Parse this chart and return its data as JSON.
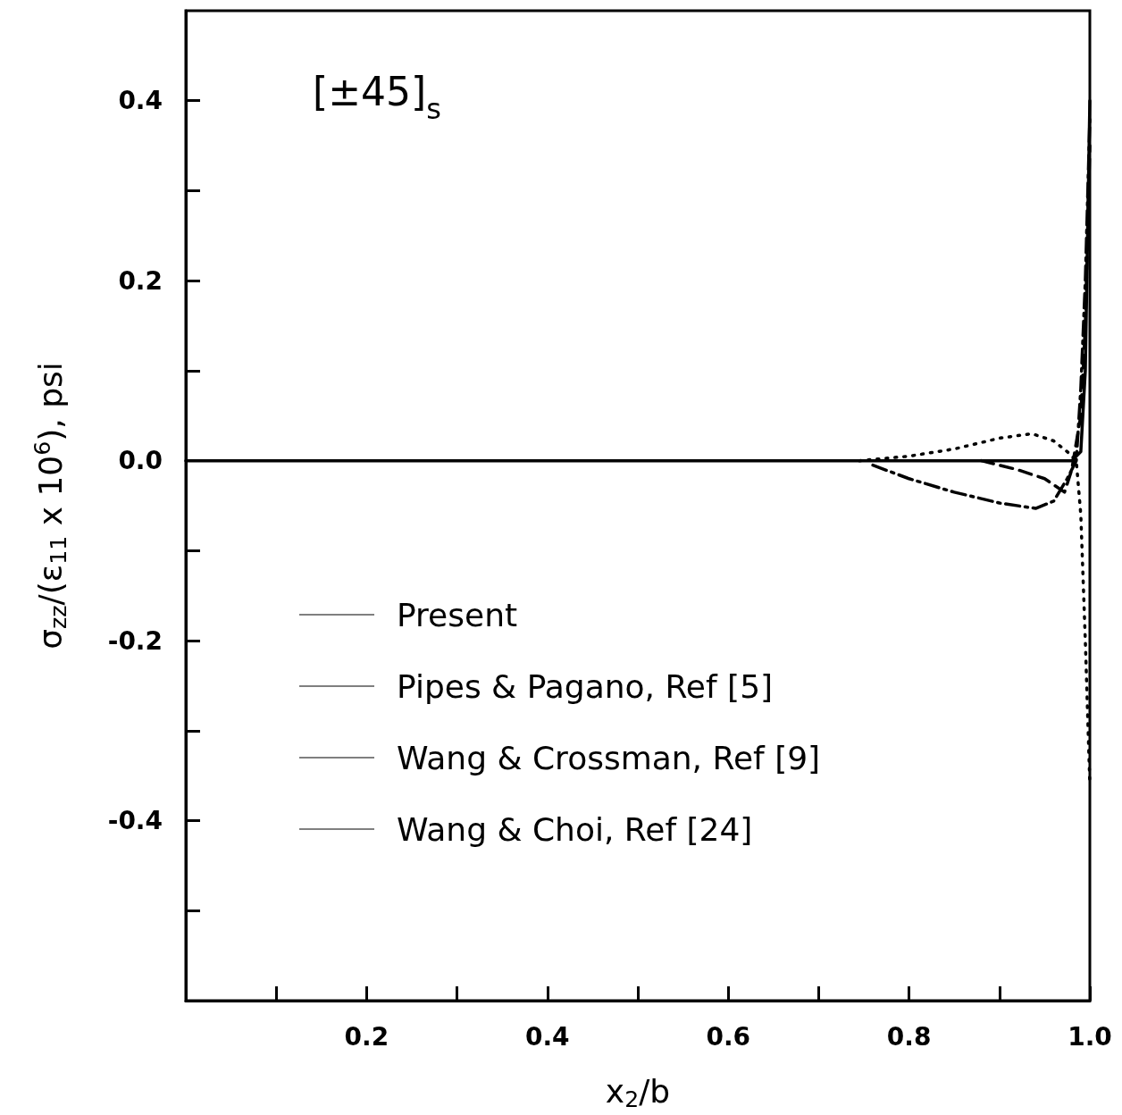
{
  "chart_data": {
    "type": "line",
    "xlabel": "x$_{2}$/b",
    "ylabel": "σ$_{zz}$/(ε$_{11}$ x 10$^{6}$), psi",
    "annotations": [
      "[±45]$_{s}$"
    ],
    "xlim": [
      0,
      1.0
    ],
    "ylim": [
      -0.6,
      0.5
    ],
    "xticks": [
      {
        "value": 0.1,
        "label": null
      },
      0.2,
      {
        "value": 0.3,
        "label": null
      },
      0.4,
      {
        "value": 0.5,
        "label": null
      },
      0.6,
      {
        "value": 0.7,
        "label": null
      },
      0.8,
      {
        "value": 0.9,
        "label": null
      },
      {
        "value": 1.0,
        "label": "1.0"
      }
    ],
    "yticks": [
      {
        "value": -0.5,
        "label": null
      },
      -0.4,
      {
        "value": -0.3,
        "label": null
      },
      -0.2,
      {
        "value": -0.1,
        "label": null
      },
      {
        "value": 0,
        "label": "0.0"
      },
      {
        "value": 0.1,
        "label": null
      },
      0.2,
      {
        "value": 0.3,
        "label": null
      },
      0.4
    ],
    "grid": false,
    "legend": "bottom left",
    "marker": "none",
    "series": [
      {
        "name": "Present",
        "color": "#000000",
        "line_style": "solid",
        "x": [
          0,
          0.5,
          0.98,
          0.99,
          0.995,
          1.0
        ],
        "values": [
          0,
          0,
          0,
          0.01,
          0.1,
          0.4
        ]
      },
      {
        "name": "Pipes & Pagano, Ref [5]",
        "color": "#000000",
        "line_style": "dashed",
        "x": [
          0.88,
          0.92,
          0.95,
          0.972,
          0.98,
          0.99,
          0.995,
          1.0
        ],
        "values": [
          0,
          -0.01,
          -0.02,
          -0.035,
          -0.01,
          0.05,
          0.15,
          0.35
        ]
      },
      {
        "name": "Wang & Crossman, Ref [9]",
        "color": "#000000",
        "line_style": "dashdot",
        "x": [
          0.76,
          0.8,
          0.85,
          0.9,
          0.94,
          0.96,
          0.975,
          0.985,
          0.99,
          0.995,
          1.0
        ],
        "values": [
          -0.005,
          -0.02,
          -0.035,
          -0.047,
          -0.053,
          -0.045,
          -0.02,
          0,
          0.08,
          0.2,
          0.38
        ]
      },
      {
        "name": "Wang & Choi, Ref [24]",
        "color": "#000000",
        "line_style": "dotted",
        "x": [
          0.745,
          0.8,
          0.85,
          0.9,
          0.936,
          0.96,
          0.975,
          0.985,
          0.99,
          0.995,
          1.0
        ],
        "values": [
          0,
          0.005,
          0.013,
          0.025,
          0.03,
          0.022,
          0.01,
          0,
          -0.06,
          -0.2,
          -0.36
        ]
      }
    ]
  }
}
